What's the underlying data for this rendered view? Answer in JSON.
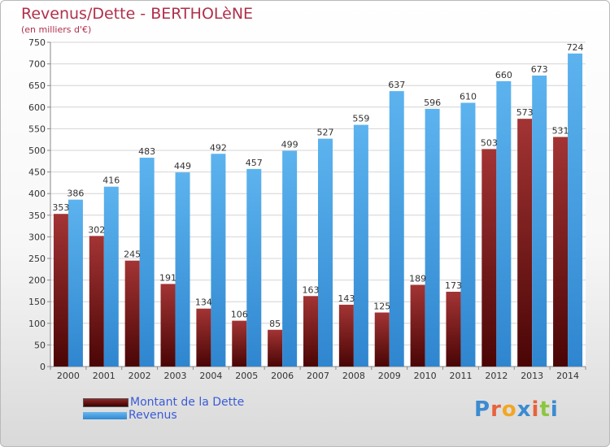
{
  "title": "Revenus/Dette - BERTHOLèNE",
  "subtitle": "(en milliers d'€)",
  "logo": {
    "text": "Proxiti",
    "letter_colors": [
      "#3b8bd1",
      "#e8623a",
      "#f2a623",
      "#3b8bd1",
      "#e8623a",
      "#8cc63f",
      "#3b8bd1"
    ]
  },
  "chart_data": {
    "type": "bar",
    "categories": [
      "2000",
      "2001",
      "2002",
      "2003",
      "2004",
      "2005",
      "2006",
      "2007",
      "2008",
      "2009",
      "2010",
      "2011",
      "2012",
      "2013",
      "2014"
    ],
    "series": [
      {
        "name": "Montant de la Dette",
        "values": [
          353,
          302,
          245,
          191,
          134,
          106,
          85,
          163,
          143,
          125,
          189,
          173,
          503,
          573,
          531
        ],
        "color": "#7b1c1c"
      },
      {
        "name": "Revenus",
        "values": [
          386,
          416,
          483,
          449,
          492,
          457,
          499,
          527,
          559,
          637,
          596,
          610,
          660,
          673,
          724
        ],
        "color": "#4aa3e6"
      }
    ],
    "ylim": [
      0,
      750
    ],
    "yticks": [
      0,
      50,
      100,
      150,
      200,
      250,
      300,
      350,
      400,
      450,
      500,
      550,
      600,
      650,
      700,
      750
    ],
    "grid": true,
    "legend_position": "bottom-left"
  }
}
